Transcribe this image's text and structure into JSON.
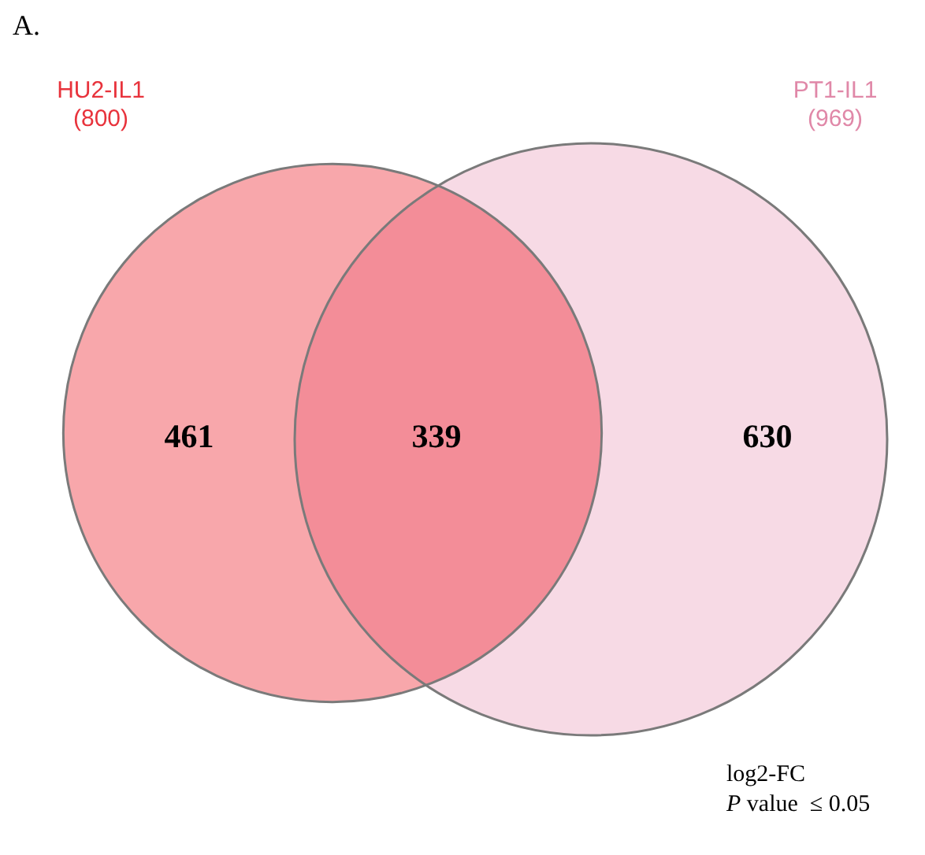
{
  "chart_data": {
    "type": "other",
    "title": "A.",
    "categories": [
      "HU2-IL1",
      "PT1-IL1"
    ],
    "values": [
      800,
      969
    ],
    "value_labels": [
      "(800)",
      "(969)"
    ],
    "colors": [
      "#f8a7ab",
      "#f7dae5"
    ],
    "annotations": [
      {
        "text": "461",
        "x": "HU2-IL1"
      },
      {
        "text": "339"
      },
      {
        "text": "630",
        "x": "PT1-IL1"
      },
      "log2-FC",
      "P value  ≤ 0.05"
    ]
  }
}
